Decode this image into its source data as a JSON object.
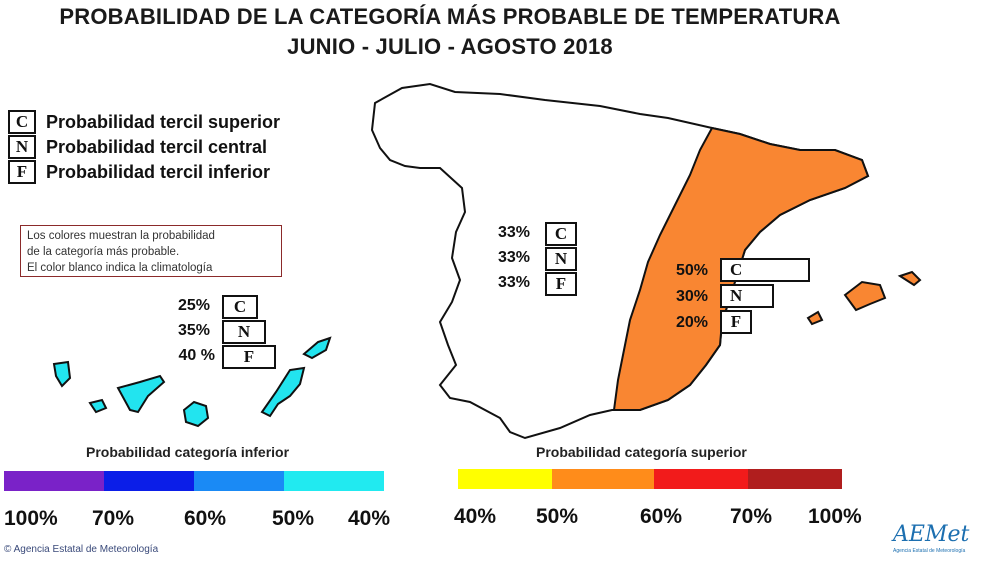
{
  "title": "PROBABILIDAD DE LA CATEGORÍA MÁS PROBABLE DE  TEMPERATURA",
  "subtitle": "JUNIO - JULIO - AGOSTO 2018",
  "legend": [
    {
      "code": "C",
      "label": "Probabilidad  tercil superior"
    },
    {
      "code": "N",
      "label": "Probabilidad  tercil central"
    },
    {
      "code": "F",
      "label": "Probabilidad  tercil inferior"
    }
  ],
  "note": {
    "line1": "Los colores muestran la probabilidad",
    "line2": "de la categoría más probable.",
    "line3": "El color blanco indica la climatología"
  },
  "regions": {
    "canarias": {
      "color": "#22e4ef",
      "values": [
        {
          "code": "C",
          "pct": "25%",
          "value": 25
        },
        {
          "code": "N",
          "pct": "35%",
          "value": 35
        },
        {
          "code": "F",
          "pct": "40 %",
          "value": 40
        }
      ]
    },
    "peninsula_oeste": {
      "color": "#ffffff",
      "values": [
        {
          "code": "C",
          "pct": "33%",
          "value": 33
        },
        {
          "code": "N",
          "pct": "33%",
          "value": 33
        },
        {
          "code": "F",
          "pct": "33%",
          "value": 33
        }
      ]
    },
    "peninsula_este": {
      "color": "#f98632",
      "values": [
        {
          "code": "C",
          "pct": "50%",
          "value": 50
        },
        {
          "code": "N",
          "pct": "30%",
          "value": 30
        },
        {
          "code": "F",
          "pct": "20%",
          "value": 20
        }
      ]
    }
  },
  "scale_inferior": {
    "title": "Probabilidad categoría inferior",
    "colors": [
      "#7a22c8",
      "#0b1ee8",
      "#1a8af5",
      "#21eaf0"
    ],
    "ticks": [
      "100%",
      "70%",
      "60%",
      "50%",
      "40%"
    ]
  },
  "scale_superior": {
    "title": "Probabilidad categoría superior",
    "colors": [
      "#ffff00",
      "#ff8c1a",
      "#f21b1b",
      "#b01e1e"
    ],
    "ticks": [
      "40%",
      "50%",
      "60%",
      "70%",
      "100%"
    ]
  },
  "credit": "Agencia Estatal de Meteorología",
  "logo": "AEMet",
  "logo_sub": "Agencia Estatal de Meteorología"
}
